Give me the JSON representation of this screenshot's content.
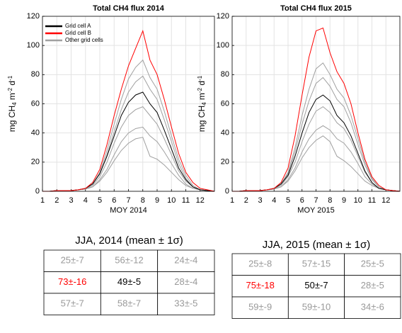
{
  "chart_data": [
    {
      "type": "line",
      "title": "Total CH4 flux 2014",
      "xlabel": "MOY 2014",
      "ylabel": [
        "mg CH",
        "4",
        " m",
        "-2",
        " d",
        "-1"
      ],
      "x": [
        1,
        1.5,
        2,
        2.5,
        3,
        3.5,
        4,
        4.5,
        5,
        5.5,
        6,
        6.5,
        7,
        7.5,
        8,
        8.5,
        9,
        9.5,
        10,
        10.5,
        11,
        11.5,
        12,
        12.5,
        13
      ],
      "xlim": [
        1,
        13
      ],
      "xticks": [
        1,
        2,
        3,
        4,
        5,
        6,
        7,
        8,
        9,
        10,
        11,
        12
      ],
      "ylim": [
        0,
        120
      ],
      "yticks": [
        0,
        20,
        40,
        60,
        80,
        100,
        120
      ],
      "grid": true,
      "legend": "upper-left",
      "series": [
        {
          "name": "Grid cell A",
          "color": "#000000",
          "values": [
            0,
            0,
            0.5,
            0.5,
            0.5,
            1,
            2,
            5,
            12,
            24,
            38,
            52,
            61,
            66,
            68,
            60,
            54,
            42,
            29,
            16,
            8,
            3,
            1,
            0.5,
            0
          ]
        },
        {
          "name": "Grid cell B",
          "color": "#ff0000",
          "values": [
            0,
            0,
            0.5,
            0.5,
            0.5,
            1,
            2,
            6,
            15,
            32,
            52,
            70,
            86,
            98,
            110,
            90,
            80,
            63,
            44,
            26,
            13,
            6,
            2,
            1,
            0
          ]
        },
        {
          "name": "Other grid cells",
          "color": "#a0a0a0",
          "values": [
            0,
            0,
            0.5,
            0.5,
            0.5,
            1,
            2,
            5,
            13,
            28,
            46,
            63,
            77,
            85,
            90,
            78,
            70,
            55,
            38,
            22,
            11,
            4,
            1,
            0.5,
            0
          ]
        },
        {
          "color": "#a0a0a0",
          "values": [
            0,
            0,
            0.5,
            0.5,
            0.5,
            1,
            2,
            5,
            12,
            25,
            41,
            56,
            68,
            75,
            79,
            70,
            63,
            49,
            34,
            19,
            9,
            3,
            1,
            0.5,
            0
          ]
        },
        {
          "color": "#a0a0a0",
          "values": [
            0,
            0,
            0.5,
            0.5,
            0.5,
            1,
            1.5,
            4,
            10,
            20,
            33,
            44,
            52,
            56,
            58,
            52,
            46,
            36,
            25,
            14,
            7,
            3,
            1,
            0.5,
            0
          ]
        },
        {
          "color": "#a0a0a0",
          "values": [
            0,
            0,
            0.5,
            0.5,
            0.5,
            1,
            1.5,
            3,
            8,
            15,
            25,
            34,
            40,
            43,
            44,
            38,
            34,
            27,
            19,
            11,
            5,
            2,
            1,
            0.5,
            0
          ]
        },
        {
          "color": "#a0a0a0",
          "values": [
            0,
            0,
            0.5,
            0.5,
            0.5,
            1,
            1.5,
            3,
            7,
            13,
            21,
            28,
            33,
            36,
            37,
            24,
            22,
            18,
            13,
            8,
            4,
            2,
            1,
            0.5,
            0
          ]
        }
      ]
    },
    {
      "type": "line",
      "title": "Total CH4 flux 2015",
      "xlabel": "MOY 2015",
      "ylabel": [
        "mg CH",
        "4",
        " m",
        "-2",
        " d",
        "-1"
      ],
      "x": [
        1,
        1.5,
        2,
        2.5,
        3,
        3.5,
        4,
        4.5,
        5,
        5.5,
        6,
        6.5,
        7,
        7.5,
        8,
        8.5,
        9,
        9.5,
        10,
        10.5,
        11,
        11.5,
        12,
        12.5,
        13
      ],
      "xlim": [
        1,
        13
      ],
      "xticks": [
        1,
        2,
        3,
        4,
        5,
        6,
        7,
        8,
        9,
        10,
        11,
        12
      ],
      "ylim": [
        0,
        120
      ],
      "yticks": [
        0,
        20,
        40,
        60,
        80,
        100,
        120
      ],
      "grid": true,
      "series": [
        {
          "color": "#000000",
          "values": [
            0,
            0,
            0.5,
            0.5,
            0.5,
            1,
            2,
            5,
            11,
            24,
            40,
            54,
            63,
            66,
            62,
            52,
            47,
            38,
            26,
            14,
            6,
            2,
            1,
            0.5,
            0
          ]
        },
        {
          "color": "#ff0000",
          "values": [
            0,
            0,
            0.5,
            0.5,
            0.5,
            1,
            2,
            6,
            16,
            38,
            66,
            92,
            110,
            112,
            95,
            82,
            74,
            60,
            40,
            22,
            10,
            4,
            1,
            0.5,
            0
          ]
        },
        {
          "color": "#a0a0a0",
          "values": [
            0,
            0,
            0.5,
            0.5,
            0.5,
            1,
            2,
            5,
            13,
            30,
            52,
            70,
            84,
            88,
            80,
            70,
            64,
            52,
            36,
            20,
            9,
            3,
            1,
            0.5,
            0
          ]
        },
        {
          "color": "#a0a0a0",
          "values": [
            0,
            0,
            0.5,
            0.5,
            0.5,
            1,
            2,
            5,
            12,
            27,
            46,
            62,
            74,
            78,
            72,
            63,
            58,
            47,
            32,
            18,
            8,
            3,
            1,
            0.5,
            0
          ]
        },
        {
          "color": "#a0a0a0",
          "values": [
            0,
            0,
            0.5,
            0.5,
            0.5,
            1,
            1.5,
            4,
            10,
            20,
            34,
            46,
            55,
            58,
            54,
            47,
            43,
            35,
            24,
            13,
            6,
            2,
            1,
            0.5,
            0
          ]
        },
        {
          "color": "#a0a0a0",
          "values": [
            0,
            0,
            0.5,
            0.5,
            0.5,
            1,
            1.5,
            3,
            8,
            16,
            27,
            36,
            42,
            45,
            42,
            36,
            33,
            27,
            19,
            10,
            5,
            2,
            1,
            0.5,
            0
          ]
        },
        {
          "color": "#a0a0a0",
          "values": [
            0,
            0,
            0.5,
            0.5,
            0.5,
            1,
            1.5,
            3,
            7,
            14,
            23,
            30,
            35,
            38,
            34,
            24,
            21,
            17,
            12,
            7,
            4,
            2,
            1,
            0.5,
            0
          ]
        }
      ]
    }
  ],
  "tables": [
    {
      "title": "JJA, 2014 (mean ± 1σ)",
      "rows": [
        [
          "25±-7",
          "56±-12",
          "24±-4"
        ],
        [
          "73±-16",
          "49±-5",
          "28±-4"
        ],
        [
          "57±-7",
          "58±-7",
          "33±-5"
        ]
      ],
      "colors": [
        [
          "#999999",
          "#999999",
          "#999999"
        ],
        [
          "#ff0000",
          "#000000",
          "#999999"
        ],
        [
          "#999999",
          "#999999",
          "#999999"
        ]
      ]
    },
    {
      "title": "JJA, 2015 (mean ± 1σ)",
      "rows": [
        [
          "25±-8",
          "57±-15",
          "25±-5"
        ],
        [
          "75±-18",
          "50±-7",
          "28±-5"
        ],
        [
          "59±-9",
          "59±-10",
          "34±-6"
        ]
      ],
      "colors": [
        [
          "#999999",
          "#999999",
          "#999999"
        ],
        [
          "#ff0000",
          "#000000",
          "#999999"
        ],
        [
          "#999999",
          "#999999",
          "#999999"
        ]
      ]
    }
  ]
}
